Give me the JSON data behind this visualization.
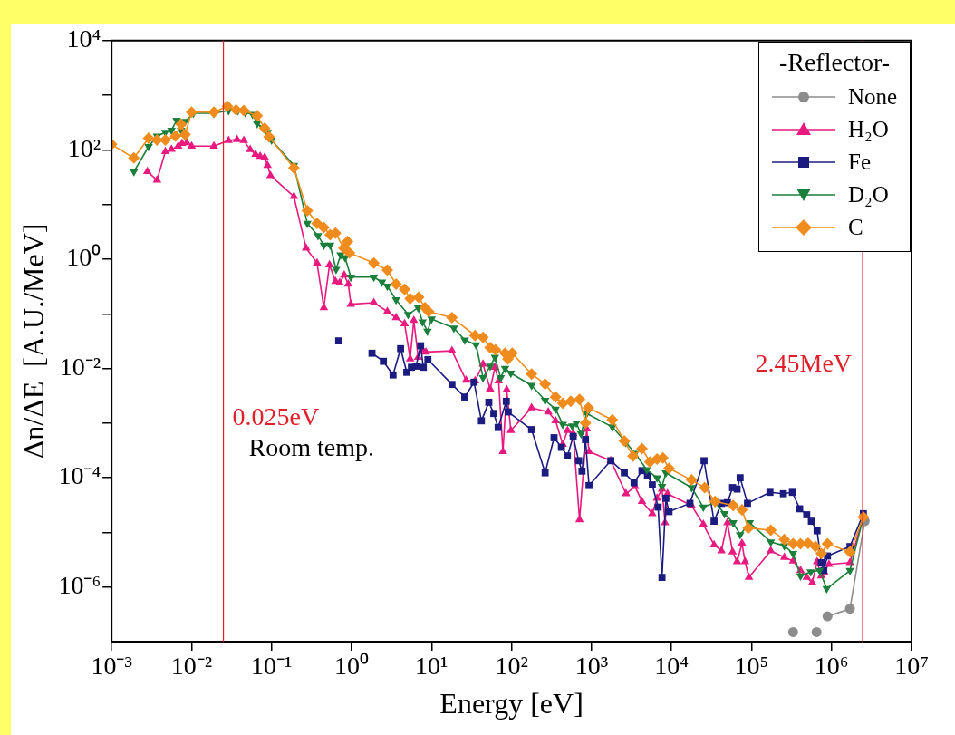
{
  "chart_data": {
    "type": "line",
    "xlabel": "Energy [eV]",
    "ylabel": "Δn/ΔE  [A.U./MeV]",
    "legend_title": "-Reflector-",
    "legend": "top right",
    "grid": false,
    "log": "xy",
    "xlim": [
      0.001,
      10000000
    ],
    "ylim": [
      1e-07,
      10000
    ],
    "xticks": [
      {
        "value": 0.001,
        "label": "10⁻³"
      },
      {
        "value": 0.01,
        "label": "10⁻²"
      },
      {
        "value": 0.1,
        "label": "10⁻¹"
      },
      {
        "value": 1,
        "label": "10⁰"
      },
      {
        "value": 10,
        "label": "10¹"
      },
      {
        "value": 100,
        "label": "10²"
      },
      {
        "value": 1000,
        "label": "10³"
      },
      {
        "value": 10000,
        "label": "10⁴"
      },
      {
        "value": 100000,
        "label": "10⁵"
      },
      {
        "value": 1000000,
        "label": "10⁶"
      },
      {
        "value": 10000000,
        "label": "10⁷"
      }
    ],
    "yticks": [
      {
        "value": 1e-06,
        "label": "10⁻⁶"
      },
      {
        "value": 1e-05,
        "label": null
      },
      {
        "value": 0.0001,
        "label": "10⁻⁴"
      },
      {
        "value": 0.001,
        "label": null
      },
      {
        "value": 0.01,
        "label": "10⁻²"
      },
      {
        "value": 0.1,
        "label": null
      },
      {
        "value": 1,
        "label": "10⁰"
      },
      {
        "value": 10,
        "label": null
      },
      {
        "value": 100,
        "label": "10²"
      },
      {
        "value": 1000,
        "label": null
      },
      {
        "value": 10000,
        "label": "10⁴"
      }
    ],
    "ref_lines": [
      {
        "axis": "x",
        "value": 0.025,
        "label": "0.025eV",
        "color": "#e0202a"
      },
      {
        "axis": "x",
        "value": 2450000,
        "label": "2.45MeV",
        "color": "#e0202a"
      }
    ],
    "annotations": [
      "Room temp."
    ],
    "series": [
      {
        "name": "None",
        "color": "#8c8c8c",
        "marker": "circle",
        "x": [
          331000,
          450000,
          650000,
          780000,
          890000,
          1700000,
          2600000
        ],
        "values": [
          1.5e-07,
          null,
          1.5e-07,
          null,
          2.9e-07,
          4e-07,
          1.6e-05
        ]
      },
      {
        "name": "H₂O",
        "color": "#e8197f",
        "marker": "triangle",
        "x": [
          0.0028,
          0.0037,
          0.0047,
          0.0056,
          0.0068,
          0.0076,
          0.0087,
          0.01,
          0.019,
          0.029,
          0.037,
          0.045,
          0.054,
          0.063,
          0.072,
          0.082,
          0.089,
          0.097,
          0.19,
          0.27,
          0.37,
          0.45,
          0.53,
          0.63,
          0.71,
          0.81,
          0.91,
          0.98,
          1.9,
          2.8,
          3.6,
          4.6,
          5.4,
          6.0,
          6.8,
          7.7,
          8.5,
          18,
          27,
          35,
          44,
          54,
          62,
          69,
          78,
          87,
          98,
          178,
          288,
          355,
          437,
          500,
          590,
          708,
          870,
          930,
          1740,
          2700,
          3500,
          4270,
          5750,
          6600,
          7600,
          8300,
          8900,
          17800,
          25000,
          34000,
          42000,
          50000,
          58000,
          66000,
          76000,
          83000,
          93000,
          174000,
          257000,
          331000,
          410000,
          490000,
          575000,
          660000,
          745000,
          810000,
          930000,
          1700000,
          2500000
        ],
        "values": [
          40,
          28,
          93,
          102,
          117,
          131,
          135,
          117,
          117,
          148,
          155,
          148,
          101,
          83,
          76,
          73,
          52,
          34,
          14,
          1.6,
          0.85,
          0.13,
          0.79,
          0.39,
          0.37,
          0.51,
          0.35,
          0.15,
          0.16,
          0.11,
          0.085,
          0.066,
          0.015,
          0.076,
          0.016,
          0.022,
          0.02,
          0.021,
          0.0061,
          0.0059,
          0.012,
          0.0042,
          0.0105,
          0.0059,
          0.0003,
          0.0041,
          0.00073,
          0.0019,
          0.0016,
          0.0011,
          0.00041,
          0.00073,
          0.00064,
          1.7e-05,
          0.00078,
          0.0003,
          0.000205,
          5.1e-05,
          6.9e-05,
          3.7e-05,
          2.2e-05,
          4.2e-05,
          6.2e-05,
          1.5e-05,
          5.1e-05,
          3.1e-05,
          1.4e-05,
          5.9e-06,
          4.6e-06,
          1.5e-05,
          4.4e-06,
          2.9e-06,
          6.3e-06,
          2.9e-06,
          1.5e-06,
          4.6e-06,
          3.5e-06,
          3e-06,
          2e-06,
          1.5e-06,
          1.2e-06,
          2.9e-06,
          1.6e-06,
          1.9e-06,
          2.6e-06,
          2.8e-06,
          1.9e-05
        ]
      },
      {
        "name": "Fe",
        "color": "#1c1c80",
        "marker": "square",
        "x": [
          0.69,
          1.2,
          1.8,
          2.5,
          3.3,
          4.1,
          4.9,
          5.6,
          6.4,
          7.3,
          7.9,
          9.0,
          18,
          26,
          34,
          42,
          52,
          60,
          68,
          86,
          91,
          178,
          263,
          340,
          420,
          500,
          590,
          690,
          760,
          840,
          930,
          1740,
          2570,
          3400,
          4270,
          5000,
          5750,
          6800,
          7600,
          8500,
          9300,
          17000,
          25500,
          34000,
          42000,
          50000,
          58000,
          66000,
          72000,
          89000,
          170000,
          250000,
          324000,
          400000,
          490000,
          560000,
          660000,
          745000,
          800000,
          890000,
          1700000,
          2500000
        ],
        "values": [
          0.032,
          null,
          0.019,
          0.0135,
          0.0076,
          0.023,
          0.0085,
          0.0105,
          0.011,
          0.026,
          0.0105,
          0.0145,
          0.0051,
          0.003,
          0.0056,
          0.0011,
          0.0024,
          0.0015,
          0.00083,
          0.0025,
          0.0016,
          0.00076,
          0.000123,
          0.00054,
          0.00036,
          0.00025,
          0.00057,
          0.000205,
          0.000132,
          0.0005,
          7.2e-05,
          0.000205,
          0.000123,
          8.1e-05,
          0.000135,
          0.00011,
          7.4e-05,
          2.9e-05,
          1.5e-06,
          4.2e-05,
          2.4e-05,
          3.4e-05,
          0.000205,
          1.6e-05,
          3.4e-05,
          3.5e-05,
          6.6e-05,
          6.2e-05,
          0.0001,
          3.4e-05,
          5.4e-05,
          5.1e-05,
          5.4e-05,
          2.7e-05,
          2.1e-05,
          1.6e-05,
          1.07e-05,
          2.8e-06,
          2e-06,
          3.7e-06,
          5.5e-06,
          2.2e-05
        ]
      },
      {
        "name": "D₂O",
        "color": "#1a7f3a",
        "marker": "triangle-down",
        "x": [
          0.0019,
          0.0029,
          0.0037,
          0.0047,
          0.0056,
          0.0065,
          0.0074,
          0.0083,
          0.0105,
          0.019,
          0.029,
          0.038,
          0.047,
          0.058,
          0.066,
          0.078,
          0.089,
          0.1,
          0.19,
          0.28,
          0.38,
          0.45,
          0.54,
          0.64,
          0.73,
          0.83,
          0.98,
          1.9,
          2.4,
          2.8,
          3.6,
          5.1,
          6.8,
          7.7,
          8.9,
          10,
          19,
          26,
          36,
          44,
          54,
          62,
          73,
          83,
          98,
          178,
          263,
          355,
          437,
          575,
          645,
          740,
          870,
          1820,
          2700,
          3500,
          4900,
          6600,
          7600,
          8500,
          17800,
          25000,
          35000,
          46000,
          59000,
          72000,
          95000,
          174000,
          257000,
          331000,
          410000,
          550000,
          710000,
          870000,
          1700000,
          2500000
        ],
        "values": [
          40,
          115,
          178,
          209,
          229,
          347,
          229,
          331,
          468,
          468,
          525,
          525,
          479,
          447,
          302,
          251,
          209,
          151,
          52,
          4.5,
          2.7,
          1.8,
          1.8,
          0.65,
          1.2,
          1.07,
          0.47,
          0.47,
          0.38,
          0.32,
          0.18,
          0.097,
          0.13,
          0.071,
          0.048,
          0.08,
          0.055,
          0.033,
          0.027,
          0.0068,
          0.011,
          0.016,
          0.0068,
          0.01,
          0.0082,
          0.0049,
          0.0026,
          0.0018,
          0.00095,
          0.00089,
          0.001,
          0.00064,
          0.0015,
          0.00085,
          0.00044,
          0.00028,
          0.00014,
          0.0001,
          6.9e-05,
          0.000123,
          6.6e-05,
          2.9e-05,
          3.5e-05,
          2.2e-05,
          1.5e-05,
          9.1e-06,
          1.5e-05,
          6.7e-06,
          5.7e-06,
          4.1e-06,
          1.6e-06,
          1.9e-06,
          2e-06,
          9.3e-07,
          2e-06,
          1.9e-05
        ]
      },
      {
        "name": "C",
        "color": "#f08c1e",
        "marker": "diamond",
        "x": [
          0.001,
          0.0019,
          0.0029,
          0.0037,
          0.0047,
          0.0063,
          0.0074,
          0.0083,
          0.01,
          0.019,
          0.028,
          0.036,
          0.045,
          0.066,
          0.082,
          0.093,
          0.19,
          0.28,
          0.37,
          0.45,
          0.54,
          0.63,
          0.8,
          0.89,
          0.94,
          1.9,
          2.8,
          3.6,
          4.6,
          5.4,
          6.9,
          8.3,
          9.2,
          18,
          35,
          44,
          54,
          63,
          83,
          90,
          102,
          178,
          263,
          355,
          437,
          550,
          708,
          840,
          912,
          1820,
          2570,
          3300,
          4270,
          5370,
          6600,
          7800,
          9300,
          17800,
          26000,
          35000,
          59000,
          76000,
          91000,
          174000,
          257000,
          331000,
          410000,
          510000,
          630000,
          745000,
          890000,
          1700000,
          2500000
        ],
        "values": [
          126,
          71,
          163,
          151,
          151,
          178,
          295,
          191,
          490,
          490,
          630,
          540,
          525,
          420,
          250,
          173,
          47,
          7.7,
          4.5,
          3.8,
          2.8,
          3.0,
          1.6,
          2.1,
          1.3,
          0.85,
          0.63,
          0.35,
          0.28,
          0.19,
          0.2,
          0.13,
          0.11,
          0.085,
          0.04,
          0.037,
          0.024,
          0.022,
          0.019,
          0.015,
          0.019,
          0.0079,
          0.0052,
          0.003,
          0.0023,
          0.0025,
          0.0027,
          0.001,
          0.0019,
          0.00115,
          0.00047,
          0.00025,
          0.00034,
          0.000195,
          0.00022,
          0.00023,
          0.000149,
          9.1e-05,
          6.6e-05,
          3.7e-05,
          3.1e-05,
          2.6e-05,
          1.2e-05,
          1.1e-05,
          7.4e-06,
          6.2e-06,
          6.2e-06,
          6.3e-06,
          5.5e-06,
          4.1e-06,
          6.2e-06,
          4.4e-06,
          1.9e-05
        ]
      }
    ]
  }
}
